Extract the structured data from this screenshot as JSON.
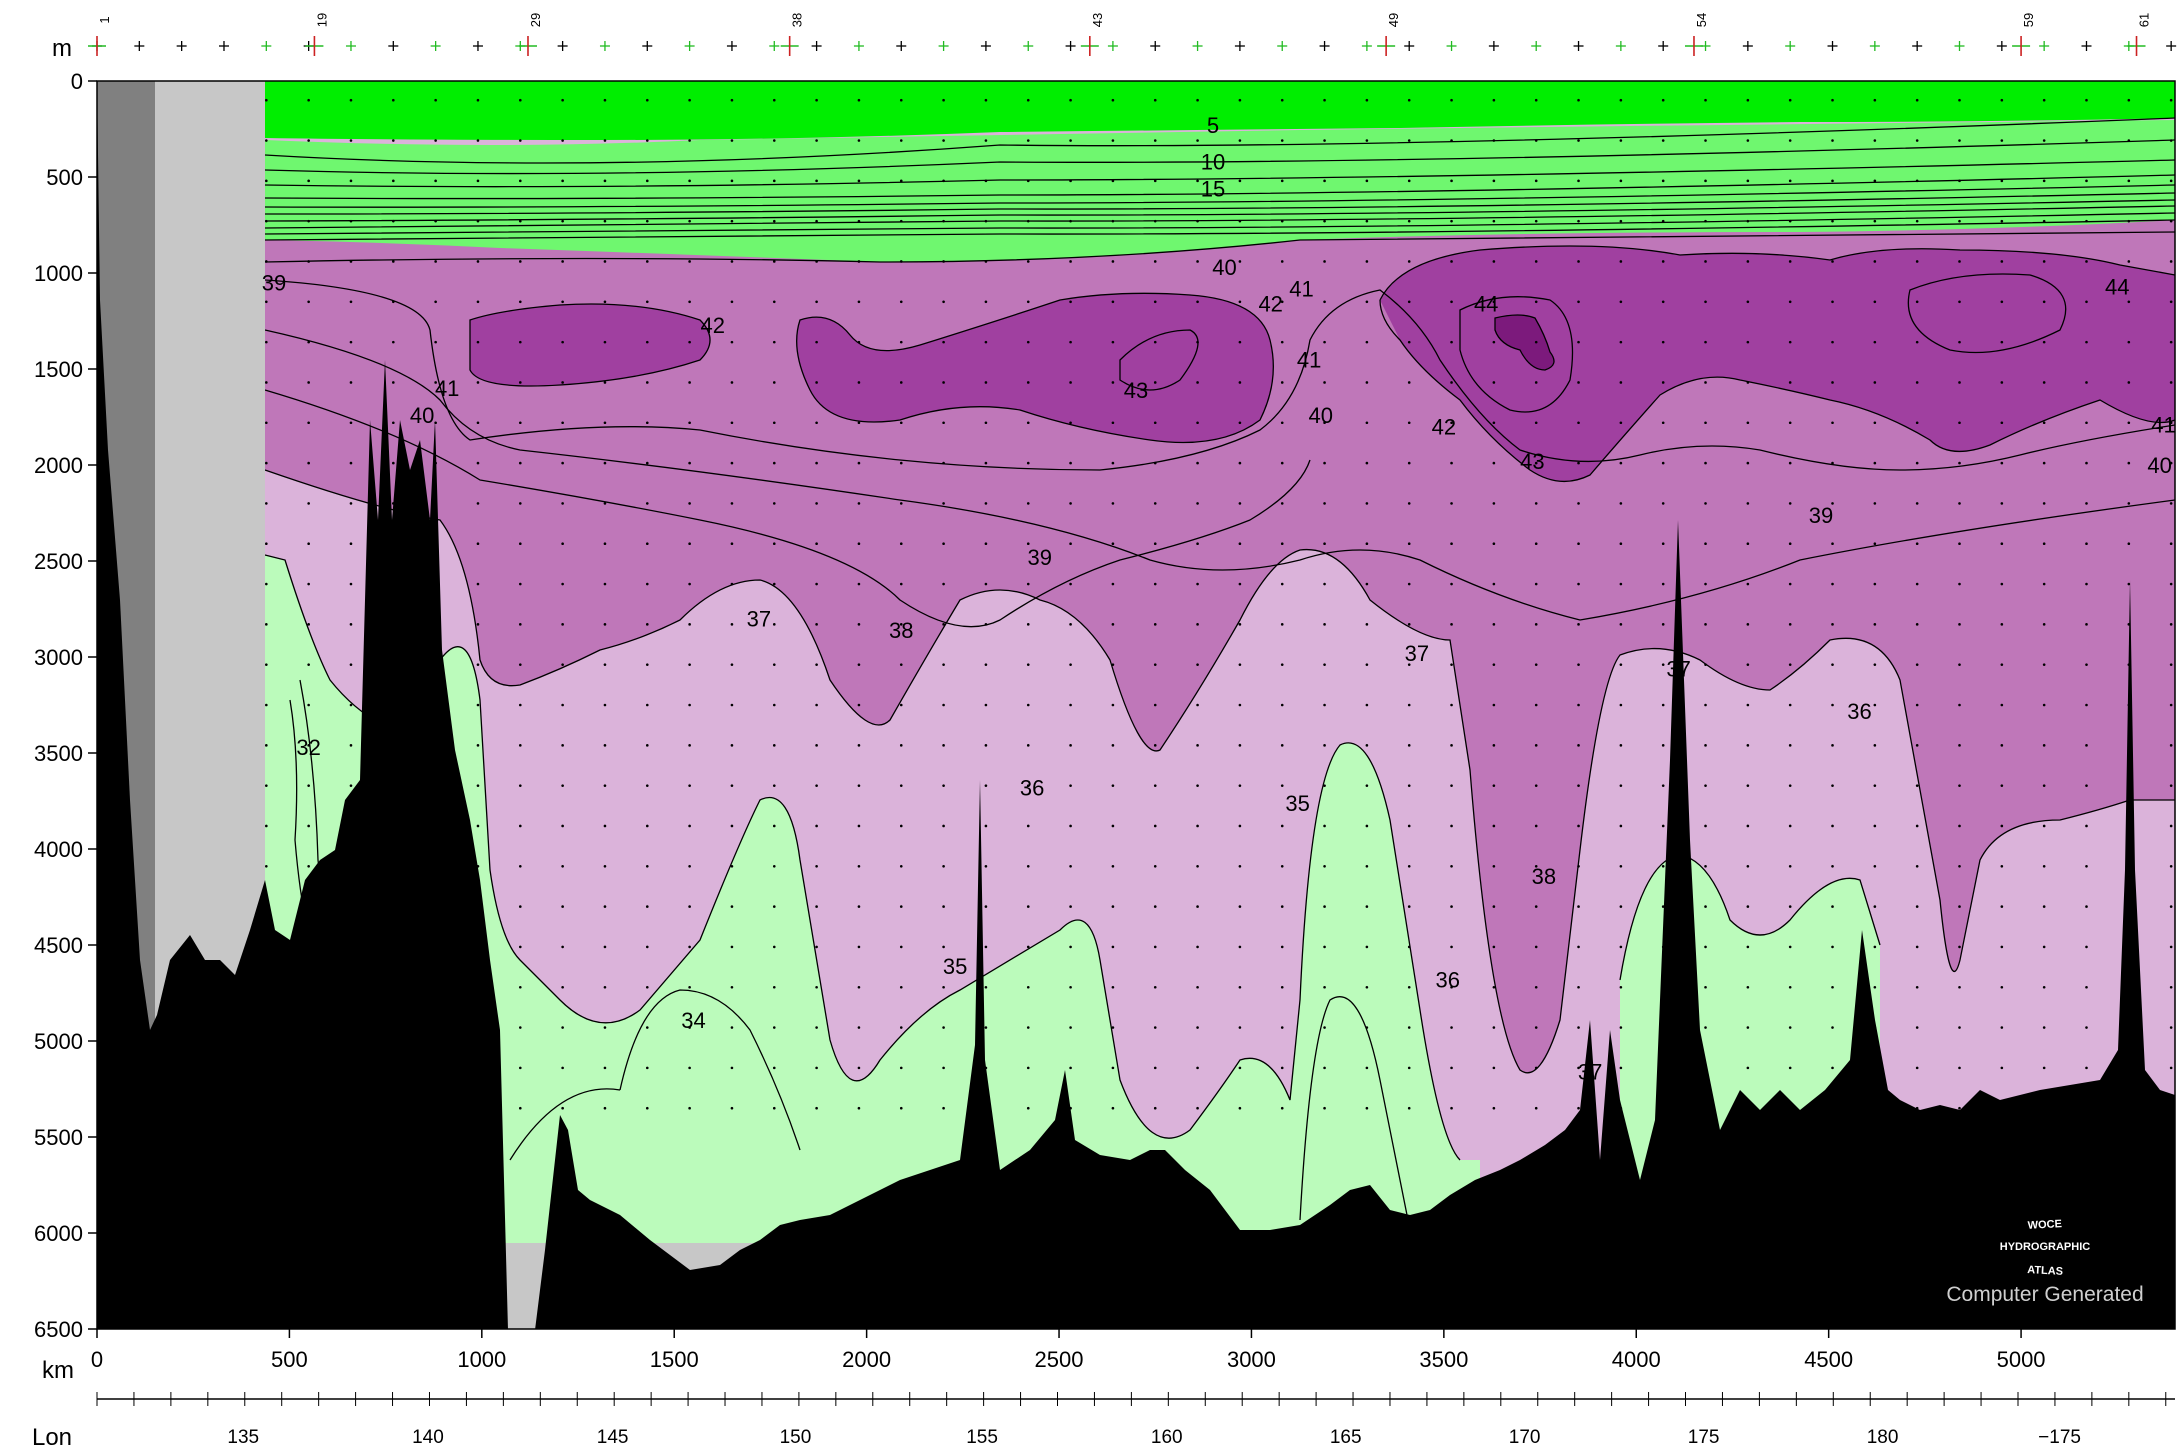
{
  "chart_data": {
    "type": "contour-section",
    "title": "",
    "xlabel": "km",
    "ylabel": "m",
    "lon_label": "Lon",
    "xlim": [
      0,
      5400
    ],
    "ylim": [
      6500,
      0
    ],
    "y_ticks": [
      0,
      500,
      1000,
      1500,
      2000,
      2500,
      3000,
      3500,
      4000,
      4500,
      5000,
      5500,
      6000,
      6500
    ],
    "x_ticks": [
      0,
      500,
      1000,
      1500,
      2000,
      2500,
      3000,
      3500,
      4000,
      4500,
      5000
    ],
    "lon_ticks": [
      {
        "label": "135",
        "km": 380
      },
      {
        "label": "140",
        "km": 860
      },
      {
        "label": "145",
        "km": 1340
      },
      {
        "label": "150",
        "km": 1815
      },
      {
        "label": "155",
        "km": 2300
      },
      {
        "label": "160",
        "km": 2780
      },
      {
        "label": "165",
        "km": 3245
      },
      {
        "label": "170",
        "km": 3710
      },
      {
        "label": "175",
        "km": 4175
      },
      {
        "label": "180",
        "km": 4640
      },
      {
        "label": "−175",
        "km": 5100
      }
    ],
    "stations": [
      {
        "label": "1",
        "km": 0
      },
      {
        "label": "19",
        "km": 565
      },
      {
        "label": "29",
        "km": 1120
      },
      {
        "label": "38",
        "km": 1800
      },
      {
        "label": "43",
        "km": 2580
      },
      {
        "label": "49",
        "km": 3350
      },
      {
        "label": "54",
        "km": 4150
      },
      {
        "label": "59",
        "km": 5000
      },
      {
        "label": "61",
        "km": 5300
      }
    ],
    "contour_levels": [
      5,
      10,
      15,
      32,
      34,
      35,
      36,
      37,
      38,
      39,
      40,
      41,
      42,
      43,
      44
    ],
    "contour_labels": [
      {
        "text": "5",
        "km": 2900,
        "depth": 230
      },
      {
        "text": "10",
        "km": 2900,
        "depth": 420
      },
      {
        "text": "15",
        "km": 2900,
        "depth": 560
      },
      {
        "text": "40",
        "km": 2930,
        "depth": 970
      },
      {
        "text": "39",
        "km": 460,
        "depth": 1050
      },
      {
        "text": "41",
        "km": 3130,
        "depth": 1080
      },
      {
        "text": "42",
        "km": 3050,
        "depth": 1160
      },
      {
        "text": "44",
        "km": 3610,
        "depth": 1160
      },
      {
        "text": "44",
        "km": 5250,
        "depth": 1070
      },
      {
        "text": "42",
        "km": 1600,
        "depth": 1270
      },
      {
        "text": "41",
        "km": 3150,
        "depth": 1450
      },
      {
        "text": "43",
        "km": 2700,
        "depth": 1610
      },
      {
        "text": "41",
        "km": 910,
        "depth": 1600
      },
      {
        "text": "40",
        "km": 845,
        "depth": 1740
      },
      {
        "text": "40",
        "km": 3180,
        "depth": 1740
      },
      {
        "text": "42",
        "km": 3500,
        "depth": 1800
      },
      {
        "text": "41",
        "km": 5370,
        "depth": 1790
      },
      {
        "text": "43",
        "km": 3730,
        "depth": 1980
      },
      {
        "text": "40",
        "km": 5360,
        "depth": 2000
      },
      {
        "text": "39",
        "km": 4480,
        "depth": 2260
      },
      {
        "text": "39",
        "km": 2450,
        "depth": 2480
      },
      {
        "text": "37",
        "km": 1720,
        "depth": 2800
      },
      {
        "text": "38",
        "km": 2090,
        "depth": 2860
      },
      {
        "text": "37",
        "km": 3430,
        "depth": 2980
      },
      {
        "text": "37",
        "km": 4110,
        "depth": 3060
      },
      {
        "text": "36",
        "km": 4580,
        "depth": 3280
      },
      {
        "text": "32",
        "km": 550,
        "depth": 3470
      },
      {
        "text": "36",
        "km": 2430,
        "depth": 3680
      },
      {
        "text": "35",
        "km": 3120,
        "depth": 3760
      },
      {
        "text": "38",
        "km": 3760,
        "depth": 4140
      },
      {
        "text": "36",
        "km": 3510,
        "depth": 4680
      },
      {
        "text": "35",
        "km": 2230,
        "depth": 4610
      },
      {
        "text": "34",
        "km": 1550,
        "depth": 4890
      },
      {
        "text": "37",
        "km": 3880,
        "depth": 5160
      }
    ],
    "colors": {
      "surface_green": "#00ee00",
      "green": "#6ff76f",
      "pale_green": "#bbfbbb",
      "pale_purple": "#dbb3da",
      "purple": "#bf77b9",
      "mid_purple": "#a040a0",
      "deep_purple": "#7c1a7c",
      "land": "#000000",
      "shelf_dark": "#808080",
      "shelf_light": "#c7c7c7"
    }
  },
  "watermark": {
    "line1": "WOCE",
    "line2": "HYDROGRAPHIC",
    "line3": "ATLAS",
    "line4": "Computer Generated"
  }
}
